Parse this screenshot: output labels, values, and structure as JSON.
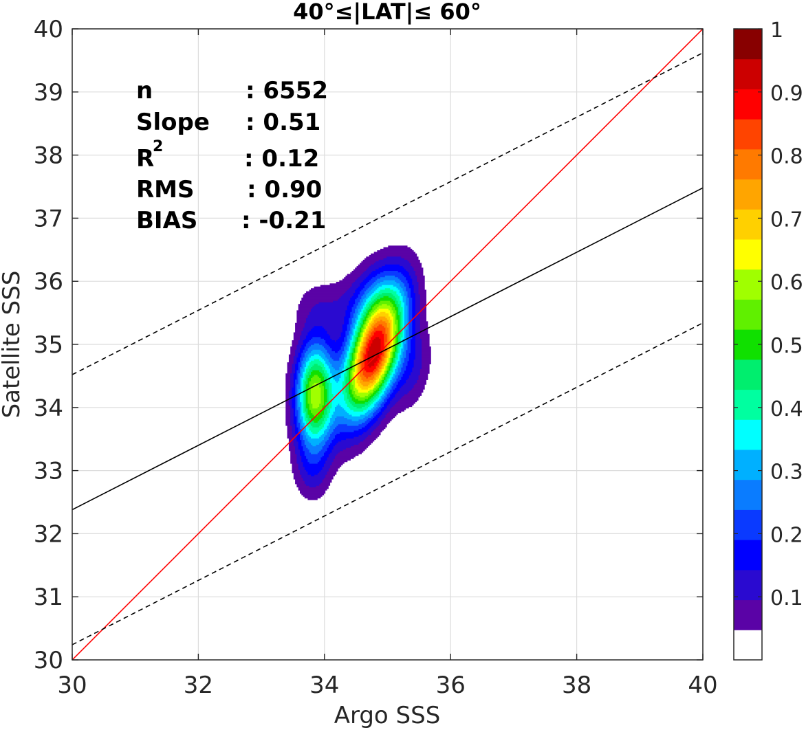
{
  "chart_data": {
    "type": "heatmap",
    "title": "40°≤|LAT|≤ 60°",
    "xlabel": "Argo SSS",
    "ylabel": "Satellite SSS",
    "xlim": [
      30,
      40
    ],
    "ylim": [
      30,
      40
    ],
    "xticks": [
      30,
      32,
      34,
      36,
      38,
      40
    ],
    "yticks": [
      30,
      31,
      32,
      33,
      34,
      35,
      36,
      37,
      38,
      39,
      40
    ],
    "grid": true,
    "stats": {
      "n_label": "n",
      "n_value": ": 6552",
      "slope_label": "Slope",
      "slope_value": ": 0.51",
      "r2_label": "R",
      "r2_sup": "2",
      "r2_value": ": 0.12",
      "rms_label": "RMS",
      "rms_value": ": 0.90",
      "bias_label": "BIAS",
      "bias_value": ": -0.21"
    },
    "lines": [
      {
        "name": "one-to-one",
        "color": "#ff0000",
        "style": "solid",
        "x": [
          30,
          40
        ],
        "y": [
          30,
          40
        ]
      },
      {
        "name": "fit",
        "color": "#000000",
        "style": "solid",
        "x": [
          30,
          40
        ],
        "y": [
          32.38,
          37.48
        ]
      },
      {
        "name": "fit-upper",
        "color": "#000000",
        "style": "dashed",
        "x": [
          30,
          40
        ],
        "y": [
          34.52,
          39.62
        ]
      },
      {
        "name": "fit-lower",
        "color": "#000000",
        "style": "dashed",
        "x": [
          30,
          40
        ],
        "y": [
          30.24,
          35.34
        ]
      }
    ],
    "density_peaks": [
      {
        "x": 34.78,
        "y": 34.85,
        "peak": 1.0
      },
      {
        "x": 33.85,
        "y": 34.2,
        "peak": 0.68
      }
    ],
    "contour_levels": [
      0.05,
      0.1,
      0.15,
      0.2,
      0.25,
      0.3,
      0.35,
      0.4,
      0.45,
      0.5,
      0.55,
      0.6,
      0.65,
      0.7,
      0.75,
      0.8,
      0.85,
      0.9,
      0.95
    ],
    "colorbar": {
      "min": 0,
      "max": 1,
      "ticks": [
        "0.1",
        "0.2",
        "0.3",
        "0.4",
        "0.5",
        "0.6",
        "0.7",
        "0.8",
        "0.9",
        "1"
      ],
      "tick_values": [
        0.1,
        0.2,
        0.3,
        0.4,
        0.5,
        0.6,
        0.7,
        0.8,
        0.9,
        1.0
      ],
      "colors": [
        "#ffffff",
        "#5a03a6",
        "#2a0ad0",
        "#0000ff",
        "#0a3aff",
        "#0a7cff",
        "#00b0ff",
        "#00ffff",
        "#00ffa0",
        "#00ee6e",
        "#10e000",
        "#60f000",
        "#a0ff00",
        "#ffff00",
        "#ffd000",
        "#ffa500",
        "#ff7a00",
        "#ff4400",
        "#ff0000",
        "#cc0000",
        "#880000"
      ]
    }
  }
}
